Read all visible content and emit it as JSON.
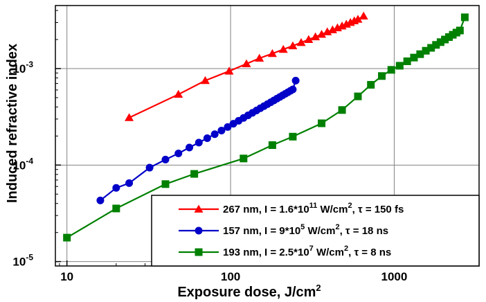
{
  "chart_data": {
    "type": "line",
    "title": "",
    "xlabel": "Exposure dose, J/cm",
    "xlabel_sup": "2",
    "ylabel": "Induced refractive index",
    "x_scale": "log",
    "y_scale": "log",
    "xlim": [
      8.5,
      3300
    ],
    "ylim": [
      9e-06,
      0.0045
    ],
    "grid": true,
    "legend_position": "bottom-right",
    "x_ticks": [
      {
        "value": 10,
        "label": "10"
      },
      {
        "value": 100,
        "label": "100"
      },
      {
        "value": 1000,
        "label": "1000"
      }
    ],
    "y_ticks": [
      {
        "value": 1e-05,
        "base": "10",
        "exp": "-5"
      },
      {
        "value": 0.0001,
        "base": "10",
        "exp": "-4"
      },
      {
        "value": 0.001,
        "base": "10",
        "exp": "-3"
      }
    ],
    "series": [
      {
        "key": "s267",
        "legend": {
          "pre": "267 nm, I = 1.6*10",
          "sup1": "11",
          "mid": " W/cm",
          "sup2": "2",
          "post": ", τ = 150 fs"
        },
        "color": "#ff0000",
        "marker": "triangle",
        "x": [
          24,
          48,
          70,
          98,
          125,
          150,
          180,
          210,
          240,
          270,
          300,
          330,
          360,
          390,
          420,
          450,
          480,
          510,
          540,
          570,
          600,
          650
        ],
        "y": [
          0.00031,
          0.00054,
          0.00075,
          0.00094,
          0.00112,
          0.00128,
          0.00143,
          0.00158,
          0.00172,
          0.00186,
          0.002,
          0.00213,
          0.00226,
          0.0024,
          0.00252,
          0.00264,
          0.00276,
          0.00288,
          0.003,
          0.00312,
          0.00324,
          0.0035
        ]
      },
      {
        "key": "s157",
        "legend": {
          "pre": "157 nm, I = 9*10",
          "sup1": "5",
          "mid": " W/cm",
          "sup2": "2",
          "post": ", τ = 18 ns"
        },
        "color": "#0000c8",
        "marker": "circle",
        "x": [
          16,
          20,
          24,
          32,
          40,
          48,
          56,
          64,
          72,
          80,
          88,
          96,
          104,
          112,
          120,
          128,
          136,
          144,
          152,
          160,
          168,
          176,
          184,
          192,
          200,
          208,
          216,
          224,
          232,
          240,
          250
        ],
        "y": [
          4.3e-05,
          5.8e-05,
          6.5e-05,
          9.4e-05,
          0.000114,
          0.000132,
          0.000152,
          0.000171,
          0.00019,
          0.000209,
          0.000228,
          0.000248,
          0.000268,
          0.000288,
          0.000308,
          0.000328,
          0.000348,
          0.000368,
          0.000388,
          0.000408,
          0.000428,
          0.000448,
          0.000468,
          0.000488,
          0.000508,
          0.000528,
          0.000548,
          0.000568,
          0.000588,
          0.000608,
          0.00075
        ]
      },
      {
        "key": "s193",
        "legend": {
          "pre": "193 nm, I = 2.5*10",
          "sup1": "7",
          "mid": " W/cm",
          "sup2": "2",
          "post": ", τ = 8 ns"
        },
        "color": "#008000",
        "marker": "square",
        "x": [
          10,
          20,
          40,
          60,
          120,
          180,
          240,
          360,
          480,
          600,
          720,
          840,
          960,
          1080,
          1200,
          1320,
          1440,
          1560,
          1680,
          1800,
          1920,
          2040,
          2160,
          2280,
          2400,
          2520,
          2700
        ],
        "y": [
          1.77e-05,
          3.55e-05,
          6.35e-05,
          8.1e-05,
          0.000117,
          0.000161,
          0.000197,
          0.000271,
          0.000372,
          0.000515,
          0.000679,
          0.000837,
          0.00097,
          0.00107,
          0.00119,
          0.0013,
          0.00141,
          0.00153,
          0.00164,
          0.00176,
          0.00188,
          0.002,
          0.00212,
          0.00224,
          0.00236,
          0.00248,
          0.0034
        ]
      }
    ]
  }
}
